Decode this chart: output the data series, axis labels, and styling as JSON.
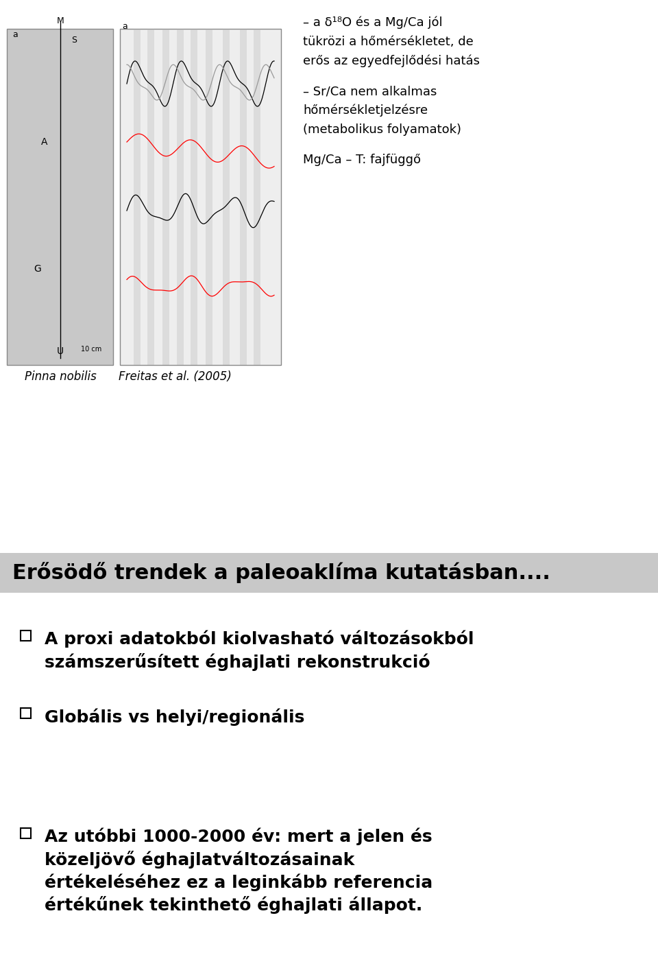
{
  "bg_color": "#ffffff",
  "header_bg": "#c8c8c8",
  "bullet_items": [
    "A proxi adatokból kiolvasható változásokból\nszámszerűsített éghajlati rekonstrukció",
    "Globális vs helyi/regionális",
    "Az utóbbi 1000-2000 év: mert a jelen és\nközeljövő éghajlatváltozásainak\nértékeléséhez ez a leginkább referencia\nértékűnek tekinthető éghajlati állapot."
  ],
  "top_right_lines": [
    "– a δ¹⁸O és a Mg/Ca jól",
    "tükrözi a hőmérsékletet, de",
    "erős az egyedfejlődési hatás",
    "",
    "– Sr/Ca nem alkalmas",
    "hőmérsékletjelzésre",
    "(metabolikus folyamatok)",
    "",
    "Mg/Ca – T: fajfüggő"
  ],
  "caption_left": "Pinna nobilis",
  "caption_right": "Freitas et al. (2005)",
  "header_text": "Erősödő trendek a paleoaklíma kutatásban....",
  "figure_width": 9.6,
  "figure_height": 13.92,
  "dpi": 100
}
